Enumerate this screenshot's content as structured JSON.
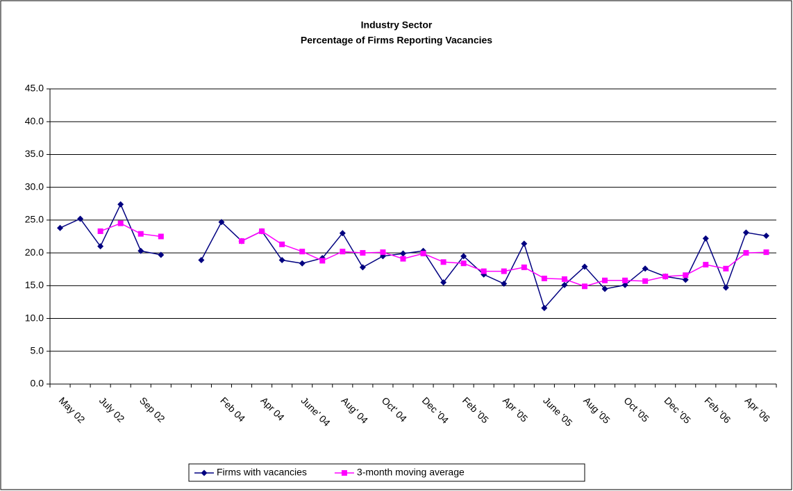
{
  "chart_data": {
    "type": "line",
    "title": "Industry Sector",
    "subtitle": "Percentage of Firms Reporting Vacancies",
    "categories": [
      "May 02",
      null,
      "July 02",
      null,
      "Sep 02",
      null,
      null,
      null,
      "Feb 04",
      null,
      "Apr 04",
      null,
      "June' 04",
      null,
      "Aug' 04",
      null,
      "Oct' 04",
      null,
      "Dec '04",
      null,
      "Feb '05",
      null,
      "Apr '05",
      null,
      "June '05",
      null,
      "Aug '05",
      null,
      "Oct '05",
      null,
      "Dec '05",
      null,
      "Feb '06",
      null,
      "Apr '06",
      null
    ],
    "series": [
      {
        "name": "Firms with vacancies",
        "color": "#000080",
        "marker": "diamond",
        "values": [
          23.8,
          25.2,
          21.0,
          27.4,
          20.3,
          19.7,
          null,
          18.9,
          24.7,
          21.8,
          23.3,
          18.9,
          18.4,
          19.2,
          23.0,
          17.8,
          19.5,
          19.9,
          20.3,
          15.5,
          19.5,
          16.7,
          15.3,
          21.4,
          11.6,
          15.1,
          17.9,
          14.5,
          15.1,
          17.6,
          16.4,
          15.9,
          22.2,
          14.7,
          23.1,
          22.6
        ]
      },
      {
        "name": "3-month moving average",
        "color": "#ff00ff",
        "marker": "square",
        "values": [
          null,
          null,
          23.3,
          24.5,
          22.9,
          22.5,
          null,
          null,
          null,
          21.8,
          23.3,
          21.3,
          20.2,
          18.8,
          20.2,
          20.0,
          20.1,
          19.1,
          19.9,
          18.6,
          18.4,
          17.2,
          17.2,
          17.8,
          16.1,
          16.0,
          14.9,
          15.8,
          15.8,
          15.7,
          16.4,
          16.6,
          18.2,
          17.6,
          20.0,
          20.1
        ]
      }
    ],
    "ylim": [
      0,
      45
    ],
    "yticks": [
      {
        "value": 0,
        "label": "0.0"
      },
      {
        "value": 5,
        "label": "5.0"
      },
      {
        "value": 10,
        "label": "10.0"
      },
      {
        "value": 15,
        "label": "15.0"
      },
      {
        "value": 20,
        "label": "20.0"
      },
      {
        "value": 25,
        "label": "25.0"
      },
      {
        "value": 30,
        "label": "30.0"
      },
      {
        "value": 35,
        "label": "35.0"
      },
      {
        "value": 40,
        "label": "40.0"
      },
      {
        "value": 45,
        "label": "45.0"
      }
    ],
    "grid": true,
    "legend": "bottom"
  }
}
